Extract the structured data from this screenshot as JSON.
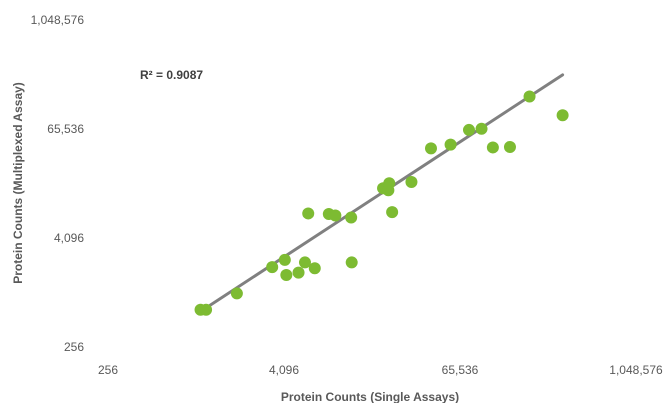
{
  "chart_data": {
    "type": "scatter",
    "title": "",
    "xlabel": "Protein Counts (Single Assays)",
    "ylabel": "Protein Counts (Multiplexed Assay)",
    "x_scale": "log2",
    "y_scale": "log2",
    "xlim": [
      256,
      1048576
    ],
    "ylim": [
      256,
      1048576
    ],
    "x_tick_labels": [
      "256",
      "4,096",
      "65,536",
      "1,048,576"
    ],
    "y_tick_labels": [
      "256",
      "4,096",
      "65,536",
      "1,048,576"
    ],
    "x_ticks": [
      256,
      4096,
      65536,
      1048576
    ],
    "y_ticks": [
      256,
      4096,
      65536,
      1048576
    ],
    "grid": false,
    "legend": "none",
    "annotation": {
      "text": "R² = 0.9087"
    },
    "series": [
      {
        "values": [
          {
            "x": 1100,
            "y": 660
          },
          {
            "x": 1200,
            "y": 660
          },
          {
            "x": 1950,
            "y": 1000
          },
          {
            "x": 3400,
            "y": 1950
          },
          {
            "x": 4150,
            "y": 2350
          },
          {
            "x": 4250,
            "y": 1600
          },
          {
            "x": 5150,
            "y": 1700
          },
          {
            "x": 5700,
            "y": 2200
          },
          {
            "x": 6000,
            "y": 7650
          },
          {
            "x": 6650,
            "y": 1900
          },
          {
            "x": 8300,
            "y": 7550
          },
          {
            "x": 9200,
            "y": 7250
          },
          {
            "x": 11800,
            "y": 6900
          },
          {
            "x": 11900,
            "y": 2200
          },
          {
            "x": 19500,
            "y": 14500
          },
          {
            "x": 21200,
            "y": 13800
          },
          {
            "x": 21500,
            "y": 16500
          },
          {
            "x": 22500,
            "y": 7900
          },
          {
            "x": 30500,
            "y": 17000
          },
          {
            "x": 41500,
            "y": 40000
          },
          {
            "x": 56500,
            "y": 44000
          },
          {
            "x": 75500,
            "y": 64000
          },
          {
            "x": 92000,
            "y": 66000
          },
          {
            "x": 110000,
            "y": 41000
          },
          {
            "x": 144000,
            "y": 41500
          },
          {
            "x": 196000,
            "y": 150000
          },
          {
            "x": 330000,
            "y": 93000
          }
        ]
      }
    ],
    "trendline": {
      "x_range": [
        1130,
        330000
      ],
      "y_range": [
        650,
        260000
      ]
    },
    "colors": {
      "points": "#7dbb32",
      "trendline": "#808080",
      "text": "#595959"
    }
  }
}
